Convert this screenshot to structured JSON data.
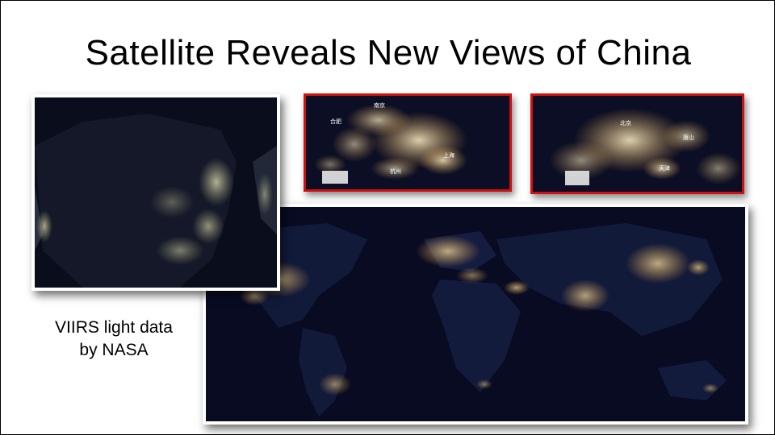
{
  "slide": {
    "title": "Satellite Reveals New Views of China",
    "caption_line1": "VIIRS light data",
    "caption_line2": "by NASA"
  },
  "images": {
    "china_map": {
      "icon": "china-night-lights-map"
    },
    "inset_shanghai": {
      "icon": "yangtze-delta-night-lights",
      "city_labels": [
        "合肥",
        "南京",
        "上海",
        "杭州"
      ]
    },
    "inset_beijing": {
      "icon": "beijing-tianjin-night-lights",
      "city_labels": [
        "北京",
        "唐山",
        "天津"
      ]
    },
    "world_map": {
      "icon": "world-night-lights-map"
    }
  },
  "colors": {
    "highlight_border": "#d01010",
    "night_sky": "#07091a",
    "city_lights": "#ffe6a0"
  }
}
